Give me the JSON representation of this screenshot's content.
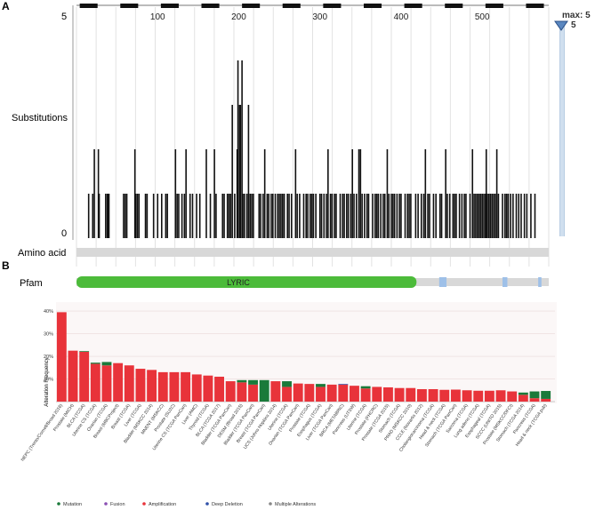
{
  "panel_a": {
    "letter": "A",
    "y_axis_label": "Substitutions",
    "y_tick_top": "5",
    "y_tick_bottom": "0",
    "x_ticks": [
      "100",
      "200",
      "300",
      "400",
      "500"
    ],
    "x_tick_values": [
      100,
      200,
      300,
      400,
      500
    ],
    "protein_length": 582,
    "max_label": "max: 5",
    "max_value_label": "5",
    "amino_acid_label": "Amino acid",
    "pfam_label": "Pfam",
    "pfam_domain": {
      "name": "LYRIC",
      "start": 0,
      "end": 419,
      "color": "#4cbb3a"
    },
    "pfam_small_segments": [
      {
        "start": 447,
        "end": 456
      },
      {
        "start": 525,
        "end": 531
      },
      {
        "start": 569,
        "end": 573
      }
    ],
    "mutations": [
      [
        15,
        1
      ],
      [
        20,
        1
      ],
      [
        22,
        2
      ],
      [
        27,
        2
      ],
      [
        28,
        1
      ],
      [
        36,
        1
      ],
      [
        38,
        1
      ],
      [
        39,
        1
      ],
      [
        40,
        1
      ],
      [
        58,
        1
      ],
      [
        60,
        1
      ],
      [
        62,
        1
      ],
      [
        72,
        2
      ],
      [
        73,
        1
      ],
      [
        75,
        1
      ],
      [
        77,
        1
      ],
      [
        85,
        1
      ],
      [
        87,
        1
      ],
      [
        95,
        1
      ],
      [
        100,
        1
      ],
      [
        105,
        1
      ],
      [
        110,
        1
      ],
      [
        112,
        1
      ],
      [
        122,
        2
      ],
      [
        124,
        1
      ],
      [
        126,
        1
      ],
      [
        130,
        1
      ],
      [
        133,
        1
      ],
      [
        135,
        2
      ],
      [
        140,
        1
      ],
      [
        143,
        1
      ],
      [
        148,
        1
      ],
      [
        152,
        1
      ],
      [
        160,
        2
      ],
      [
        165,
        1
      ],
      [
        170,
        2
      ],
      [
        172,
        1
      ],
      [
        180,
        1
      ],
      [
        182,
        1
      ],
      [
        186,
        1
      ],
      [
        188,
        1
      ],
      [
        190,
        1
      ],
      [
        192,
        3
      ],
      [
        195,
        1
      ],
      [
        198,
        2
      ],
      [
        199,
        4
      ],
      [
        201,
        3
      ],
      [
        202,
        3
      ],
      [
        204,
        4
      ],
      [
        205,
        1
      ],
      [
        207,
        1
      ],
      [
        210,
        1
      ],
      [
        212,
        3
      ],
      [
        214,
        1
      ],
      [
        216,
        1
      ],
      [
        218,
        1
      ],
      [
        225,
        1
      ],
      [
        227,
        1
      ],
      [
        230,
        1
      ],
      [
        232,
        2
      ],
      [
        235,
        1
      ],
      [
        237,
        1
      ],
      [
        240,
        1
      ],
      [
        242,
        1
      ],
      [
        245,
        1
      ],
      [
        248,
        1
      ],
      [
        250,
        1
      ],
      [
        252,
        1
      ],
      [
        254,
        1
      ],
      [
        256,
        1
      ],
      [
        260,
        1
      ],
      [
        262,
        1
      ],
      [
        265,
        1
      ],
      [
        270,
        2
      ],
      [
        272,
        1
      ],
      [
        275,
        1
      ],
      [
        280,
        1
      ],
      [
        283,
        1
      ],
      [
        285,
        1
      ],
      [
        288,
        1
      ],
      [
        290,
        1
      ],
      [
        292,
        1
      ],
      [
        295,
        1
      ],
      [
        300,
        1
      ],
      [
        302,
        1
      ],
      [
        305,
        1
      ],
      [
        308,
        1
      ],
      [
        310,
        2
      ],
      [
        313,
        1
      ],
      [
        315,
        1
      ],
      [
        318,
        1
      ],
      [
        320,
        1
      ],
      [
        325,
        1
      ],
      [
        328,
        1
      ],
      [
        330,
        1
      ],
      [
        333,
        1
      ],
      [
        335,
        1
      ],
      [
        338,
        1
      ],
      [
        340,
        2
      ],
      [
        342,
        1
      ],
      [
        345,
        1
      ],
      [
        348,
        2
      ],
      [
        350,
        2
      ],
      [
        352,
        1
      ],
      [
        355,
        1
      ],
      [
        358,
        1
      ],
      [
        360,
        1
      ],
      [
        365,
        1
      ],
      [
        368,
        1
      ],
      [
        370,
        1
      ],
      [
        372,
        1
      ],
      [
        375,
        1
      ],
      [
        378,
        1
      ],
      [
        380,
        1
      ],
      [
        383,
        2
      ],
      [
        385,
        1
      ],
      [
        388,
        1
      ],
      [
        390,
        1
      ],
      [
        392,
        1
      ],
      [
        395,
        1
      ],
      [
        398,
        1
      ],
      [
        400,
        1
      ],
      [
        405,
        1
      ],
      [
        408,
        1
      ],
      [
        410,
        1
      ],
      [
        412,
        1
      ],
      [
        418,
        1
      ],
      [
        421,
        1
      ],
      [
        425,
        1
      ],
      [
        428,
        1
      ],
      [
        430,
        2
      ],
      [
        433,
        1
      ],
      [
        435,
        1
      ],
      [
        440,
        1
      ],
      [
        443,
        1
      ],
      [
        448,
        1
      ],
      [
        450,
        1
      ],
      [
        455,
        2
      ],
      [
        457,
        1
      ],
      [
        460,
        1
      ],
      [
        464,
        1
      ],
      [
        466,
        1
      ],
      [
        468,
        1
      ],
      [
        472,
        1
      ],
      [
        475,
        1
      ],
      [
        478,
        1
      ],
      [
        480,
        1
      ],
      [
        485,
        1
      ],
      [
        488,
        2
      ],
      [
        490,
        1
      ],
      [
        492,
        1
      ],
      [
        494,
        1
      ],
      [
        496,
        1
      ],
      [
        498,
        1
      ],
      [
        500,
        1
      ],
      [
        502,
        1
      ],
      [
        504,
        1
      ],
      [
        505,
        2
      ],
      [
        506,
        1
      ],
      [
        508,
        1
      ],
      [
        510,
        1
      ],
      [
        512,
        1
      ],
      [
        514,
        1
      ],
      [
        516,
        1
      ],
      [
        518,
        2
      ],
      [
        520,
        1
      ],
      [
        525,
        1
      ],
      [
        528,
        1
      ],
      [
        530,
        1
      ],
      [
        532,
        1
      ],
      [
        535,
        1
      ],
      [
        538,
        1
      ],
      [
        542,
        1
      ],
      [
        545,
        1
      ],
      [
        548,
        1
      ],
      [
        552,
        1
      ],
      [
        555,
        1
      ],
      [
        560,
        1
      ],
      [
        565,
        1
      ]
    ]
  },
  "panel_b": {
    "letter": "B",
    "y_axis_label": "Alteration Frequency",
    "y_ticks": [
      "40%",
      "30%",
      "20%",
      "10%"
    ],
    "legend": [
      {
        "label": "Mutation",
        "color": "#1a7a3a"
      },
      {
        "label": "Fusion",
        "color": "#8b4fb3"
      },
      {
        "label": "Amplification",
        "color": "#e8333a"
      },
      {
        "label": "Deep Deletion",
        "color": "#3050a8"
      },
      {
        "label": "Multiple Alterations",
        "color": "#888888"
      }
    ]
  },
  "chart_data": {
    "type": "bar",
    "title": "",
    "ylabel": "Alteration Frequency",
    "ylim": [
      0,
      42
    ],
    "categories": [
      "NEPC (Trento/Cornell/Broad 2016)",
      "Prostate (MICH)",
      "BLCA (TCGA)",
      "Uterine CS (TCGA)",
      "Ovarian (TCGA)",
      "Breast (MBCProject)",
      "Breast (TCGA)",
      "Liver (TCGA)",
      "Bladder (MSKCC 2014)",
      "MNENT (MSKCC)",
      "Prostate (SU2C)",
      "Uterine CS (TCGA PanCan)",
      "Liver (AMC)",
      "Thyroid (TCGA)",
      "BLCA (TCGA 2017)",
      "Bladder (TCGA PanCan)",
      "DESM (Broad 2015)",
      "Bladder (TCGA PanCan)",
      "Breast (TCGA PanCan)",
      "UCS (Johns Hopkins 2014)",
      "Uterine (TCGA)",
      "Ovarian (TCGA PanCan)",
      "Prostate (TCGA)",
      "Esophagus (TCGA)",
      "Liver (TCGA PanCan)",
      "BRCA (METABRIC)",
      "Pancreas (UTSW)",
      "Uterine (TCGA)",
      "Prostate (FHCRC)",
      "Prostate (TCGA 2015)",
      "Stomach (TCGA)",
      "PRAD (MSKCC 2010)",
      "CCLE (Novartis 2012)",
      "Cholangiocarcinoma (TCGA)",
      "Head & neck (TCGA)",
      "Stomach (TCGA PanCan)",
      "Sarcoma (TCGA)",
      "Lung adeno (TCGA)",
      "Esophageal (TCGA)",
      "SCCC (UNITO 2015)",
      "Prostate (MSKCC/DFCI)",
      "Stomach (TCGA 2014)",
      "Pancreas (TCGA)",
      "Head & neck (TCGA pub)"
    ],
    "series": [
      {
        "name": "Mutation",
        "color": "#1a7a3a",
        "values": [
          0,
          0,
          0.3,
          0.5,
          1.5,
          0,
          0,
          0,
          0,
          0,
          0,
          0,
          0,
          0,
          0,
          0,
          1,
          2,
          9.5,
          0,
          2.5,
          0,
          0,
          1.3,
          0,
          0,
          0,
          1,
          0,
          0,
          0,
          0,
          0,
          0,
          0,
          0,
          0,
          0,
          0,
          0,
          0,
          1,
          3,
          3.5
        ]
      },
      {
        "name": "Fusion",
        "color": "#8b4fb3",
        "values": [
          0,
          0,
          0,
          0,
          0,
          0,
          0,
          0,
          0,
          0,
          0,
          0,
          0,
          0,
          0,
          0,
          0,
          0,
          0,
          0,
          0,
          0,
          0,
          0,
          0,
          0,
          0,
          0,
          0,
          0,
          0,
          0,
          0,
          0,
          0,
          0,
          0,
          0,
          0,
          0,
          0,
          0,
          0,
          0
        ]
      },
      {
        "name": "Amplification",
        "color": "#e8333a",
        "values": [
          39.5,
          22.5,
          22,
          16.7,
          16,
          17,
          16,
          14.5,
          14,
          13,
          13,
          13,
          12,
          11.5,
          11,
          9,
          8.5,
          7.5,
          0,
          9,
          6.5,
          8,
          7.8,
          6.5,
          7.5,
          7.5,
          7,
          5.8,
          6.5,
          6.3,
          6,
          6,
          5.5,
          5.5,
          5.2,
          5.3,
          5,
          4.8,
          4.8,
          5,
          4.5,
          3,
          1.5,
          1.2
        ]
      },
      {
        "name": "Deep Deletion",
        "color": "#3050a8",
        "values": [
          0,
          0,
          0,
          0,
          0,
          0,
          0,
          0,
          0,
          0,
          0,
          0,
          0,
          0,
          0,
          0,
          0,
          0,
          0,
          0,
          0,
          0,
          0,
          0,
          0,
          0.3,
          0,
          0,
          0,
          0,
          0,
          0,
          0,
          0,
          0,
          0,
          0,
          0,
          0,
          0,
          0,
          0,
          0,
          0
        ]
      },
      {
        "name": "Multiple Alterations",
        "color": "#888888",
        "values": [
          0,
          0,
          0,
          0,
          0,
          0,
          0,
          0,
          0,
          0,
          0,
          0,
          0,
          0,
          0,
          0,
          0,
          0,
          0,
          0,
          0,
          0,
          0,
          0,
          0,
          0,
          0,
          0,
          0,
          0,
          0,
          0,
          0,
          0,
          0,
          0,
          0,
          0,
          0,
          0,
          0,
          0,
          0,
          0
        ]
      }
    ]
  }
}
